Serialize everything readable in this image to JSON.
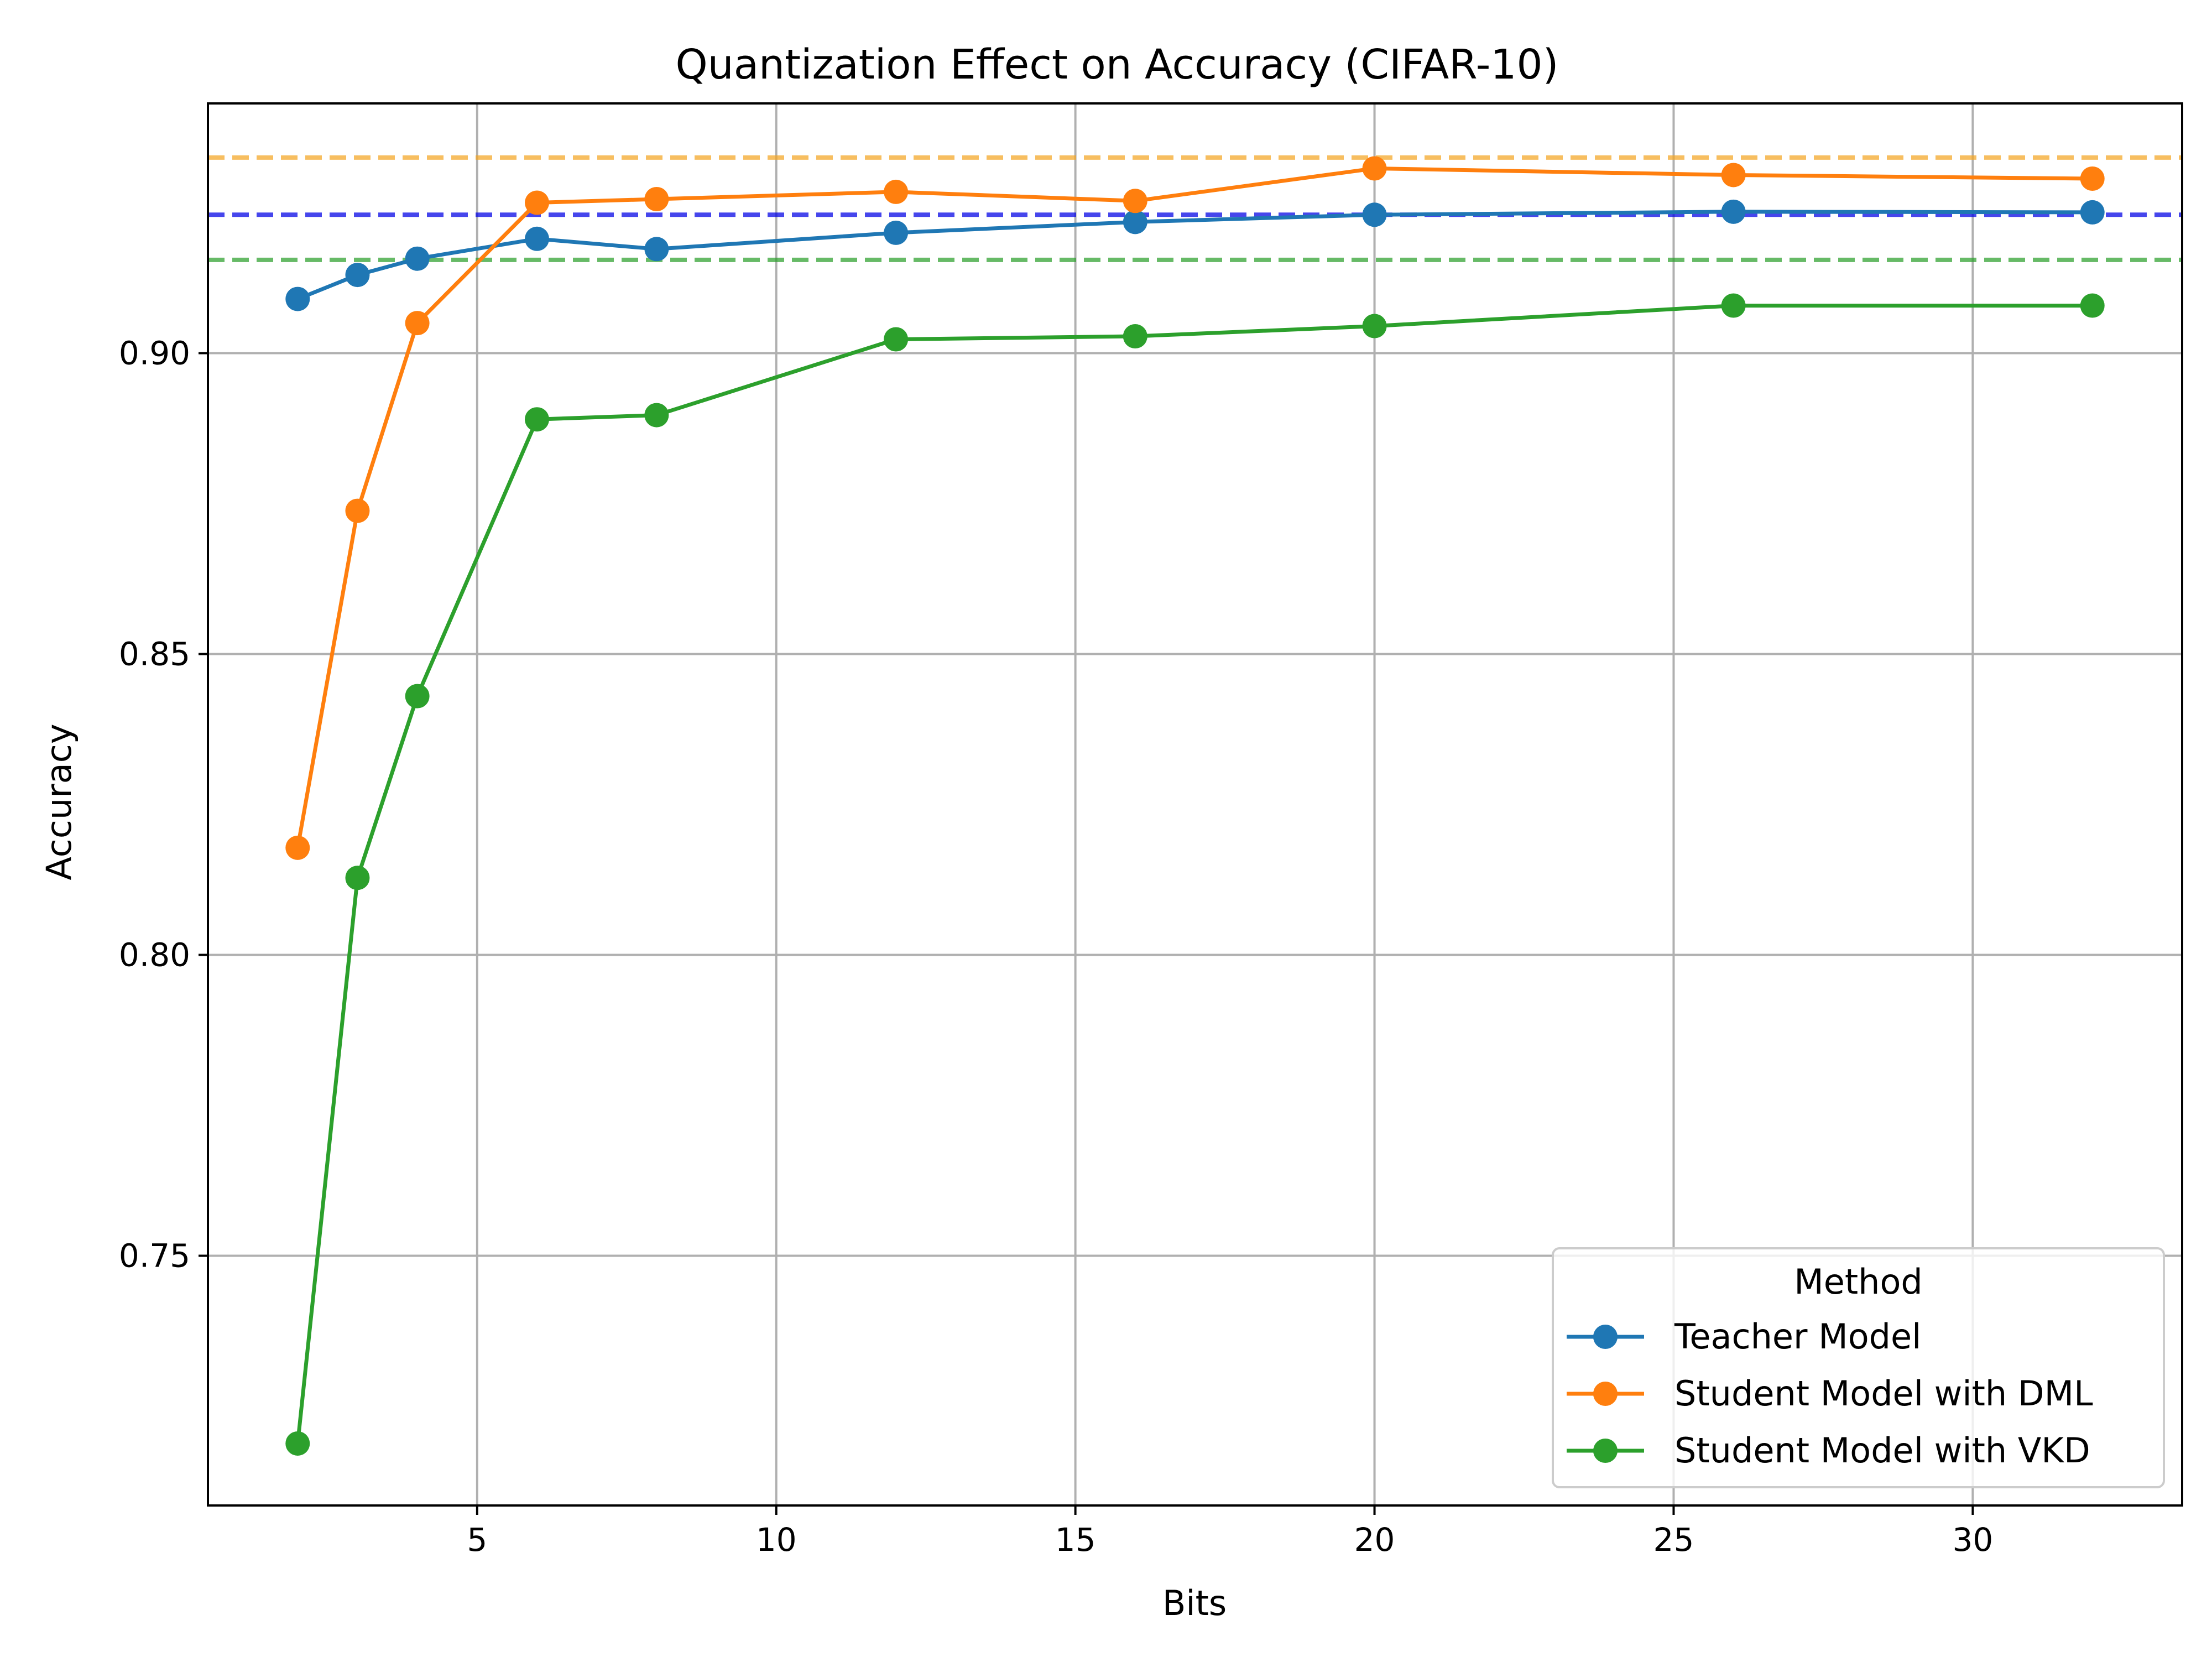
{
  "chart_data": {
    "type": "line",
    "title": "Quantization Effect on Accuracy (CIFAR-10)",
    "xlabel": "Bits",
    "ylabel": "Accuracy",
    "xlim": [
      0.5,
      33.5
    ],
    "ylim": [
      0.7085,
      0.9415
    ],
    "x_ticks": [
      5,
      10,
      15,
      20,
      25,
      30
    ],
    "y_ticks": [
      0.75,
      0.8,
      0.85,
      0.9
    ],
    "x_tick_labels": [
      "5",
      "10",
      "15",
      "20",
      "25",
      "30"
    ],
    "y_tick_labels": [
      "0.75",
      "0.80",
      "0.85",
      "0.90"
    ],
    "grid": true,
    "legend": {
      "title": "Method",
      "position": "bottom-right"
    },
    "x": [
      2,
      3,
      4,
      6,
      8,
      12,
      16,
      20,
      26,
      32
    ],
    "series": [
      {
        "name": "Teacher Model",
        "color": "#1f77b4",
        "values": [
          0.909,
          0.913,
          0.9157,
          0.919,
          0.9173,
          0.92,
          0.9218,
          0.923,
          0.9235,
          0.9234
        ]
      },
      {
        "name": "Student Model with DML",
        "color": "#ff7f0e",
        "values": [
          0.8178,
          0.8738,
          0.905,
          0.925,
          0.9256,
          0.9268,
          0.9253,
          0.9307,
          0.9296,
          0.929
        ]
      },
      {
        "name": "Student Model with VKD",
        "color": "#2ca02c",
        "values": [
          0.7188,
          0.8128,
          0.843,
          0.889,
          0.8897,
          0.9023,
          0.9028,
          0.9045,
          0.9079,
          0.9079
        ]
      }
    ],
    "reference_lines": [
      {
        "y": 0.9325,
        "color": "#f5a623",
        "style": "dashed"
      },
      {
        "y": 0.923,
        "color": "#0000e6",
        "style": "dashed"
      },
      {
        "y": 0.9155,
        "color": "#2ca02c",
        "style": "dashed"
      }
    ]
  }
}
